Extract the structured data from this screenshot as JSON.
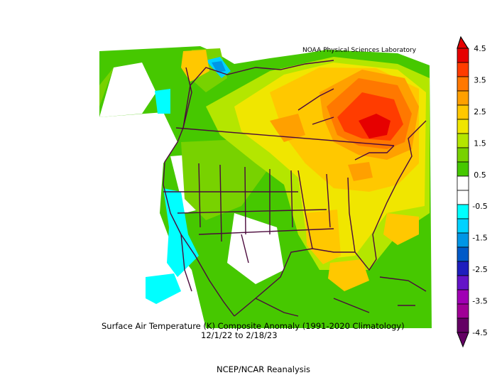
{
  "credit": "NOAA Physical Sciences Laboratory",
  "caption": {
    "line1": "Surface Air Temperature (K) Composite Anomaly (1991-2020 Climatology)",
    "line2": "12/1/22  to 2/18/23",
    "line3": "NCEP/NCAR Reanalysis"
  },
  "colorbar": {
    "labels": [
      "4.5",
      "3.5",
      "2.5",
      "1.5",
      "0.5",
      "-0.5",
      "-1.5",
      "-2.5",
      "-3.5",
      "-4.5"
    ],
    "colors_top_to_bottom": [
      "#e60000",
      "#ff3c00",
      "#ff7800",
      "#ffa000",
      "#ffc800",
      "#f0e600",
      "#b4e600",
      "#78d200",
      "#46c800",
      "#ffffff",
      "#ffffff",
      "#00ffff",
      "#00d2ff",
      "#0096e6",
      "#005ac8",
      "#1e1ebe",
      "#6414c8",
      "#a000b4",
      "#a00096",
      "#640064"
    ]
  }
}
